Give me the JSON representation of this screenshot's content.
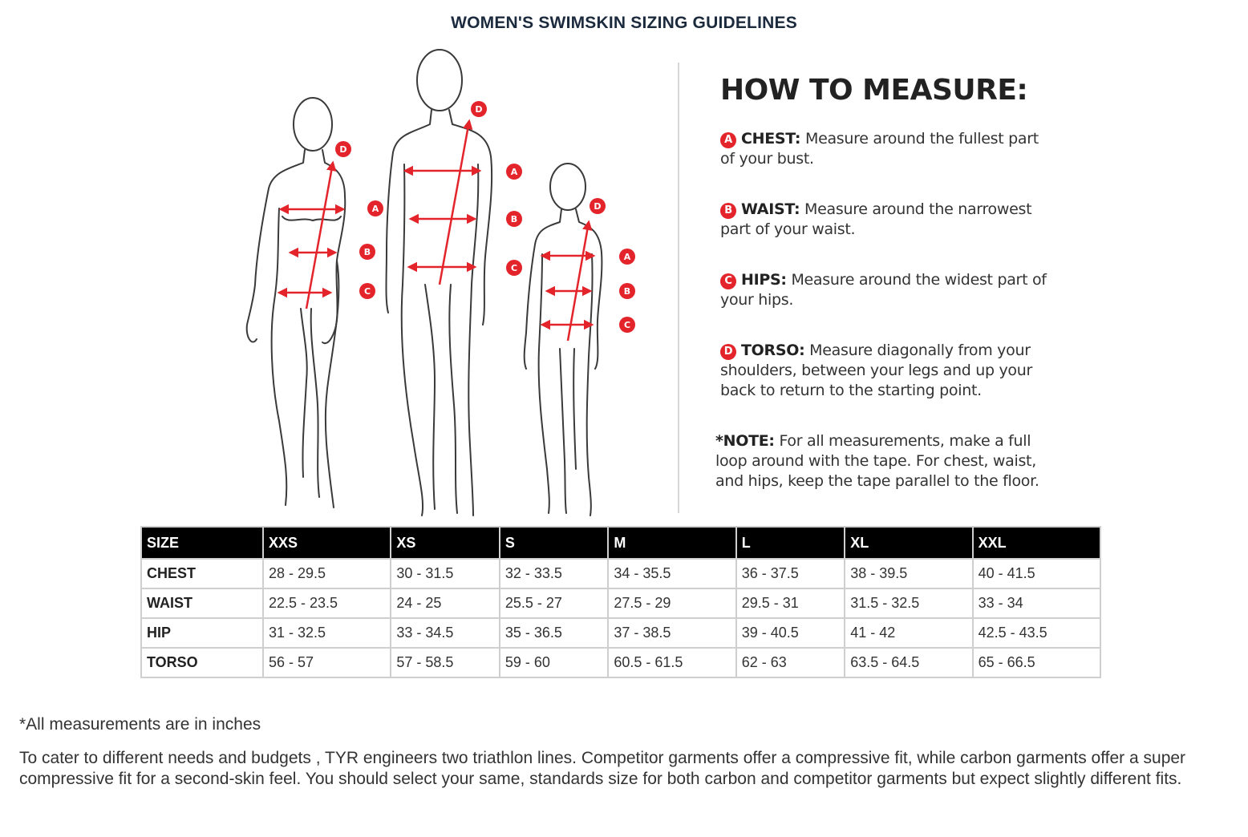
{
  "title": "WOMEN'S SWIMSKIN SIZING GUIDELINES",
  "diagram": {
    "markers": [
      "A",
      "B",
      "C",
      "D"
    ],
    "accent_color": "#e3242b"
  },
  "how_to": {
    "title": "HOW TO MEASURE:",
    "steps": [
      {
        "badge": "A",
        "label": "CHEST:",
        "text": "Measure around the fullest part of your bust."
      },
      {
        "badge": "B",
        "label": "WAIST:",
        "text": "Measure around the narrowest part of your waist."
      },
      {
        "badge": "C",
        "label": "HIPS:",
        "text": "Measure around the widest part of your hips."
      },
      {
        "badge": "D",
        "label": "TORSO:",
        "text": "Measure diagonally from your shoulders, between your legs and up your back to return to the starting point."
      }
    ],
    "note_label": "*NOTE:",
    "note_text": "For all measurements, make a full loop around with the tape. For chest, waist, and hips, keep the tape parallel to the floor."
  },
  "table": {
    "headers": [
      "SIZE",
      "XXS",
      "XS",
      "S",
      "M",
      "L",
      "XL",
      "XXL"
    ],
    "rows": [
      [
        "CHEST",
        "28 - 29.5",
        "30 - 31.5",
        "32 - 33.5",
        "34 - 35.5",
        "36 - 37.5",
        "38 - 39.5",
        "40 - 41.5"
      ],
      [
        "WAIST",
        "22.5 - 23.5",
        "24 - 25",
        "25.5 - 27",
        "27.5 - 29",
        "29.5 - 31",
        "31.5 - 32.5",
        "33 - 34"
      ],
      [
        "HIP",
        "31 - 32.5",
        "33 - 34.5",
        "35 - 36.5",
        "37 - 38.5",
        "39 - 40.5",
        "41 - 42",
        "42.5 - 43.5"
      ],
      [
        "TORSO",
        "56 - 57",
        "57 - 58.5",
        "59 - 60",
        "60.5 - 61.5",
        "62 - 63",
        "63.5 - 64.5",
        "65 - 66.5"
      ]
    ]
  },
  "footer": {
    "units_note": "*All measurements are in inches",
    "description": "To cater to different needs and budgets , TYR engineers two triathlon lines. Competitor garments offer a compressive fit, while carbon garments offer a super compressive fit for a second-skin feel. You should select your same, standards size for both carbon and competitor garments but expect slightly different fits."
  }
}
